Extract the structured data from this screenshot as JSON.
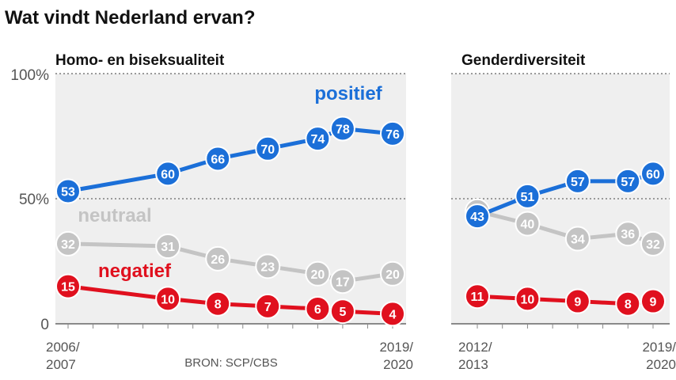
{
  "title": "Wat vindt Nederland ervan?",
  "source": "BRON: SCP/CBS",
  "y_ticks": [
    "100%",
    "50%",
    "0"
  ],
  "colors": {
    "positief": "#1b6fd8",
    "neutraal": "#c4c4c4",
    "negatief": "#e0101e",
    "panel_bg": "#efefef",
    "grid": "#9a9a9a"
  },
  "chart_data": [
    {
      "type": "line",
      "title": "Homo- en biseksualiteit",
      "x": [
        0,
        1,
        2,
        3,
        4,
        5,
        6,
        7,
        8,
        9,
        10,
        11,
        12,
        13
      ],
      "x_tick_labels": {
        "start": "2006/\n2007",
        "end": "2019/\n2020"
      },
      "ylim": [
        0,
        100
      ],
      "series": [
        {
          "name": "positief",
          "points": [
            [
              0,
              53
            ],
            [
              4,
              60
            ],
            [
              6,
              66
            ],
            [
              8,
              70
            ],
            [
              10,
              74
            ],
            [
              11,
              78
            ],
            [
              13,
              76
            ]
          ]
        },
        {
          "name": "neutraal",
          "points": [
            [
              0,
              32
            ],
            [
              4,
              31
            ],
            [
              6,
              26
            ],
            [
              8,
              23
            ],
            [
              10,
              20
            ],
            [
              11,
              17
            ],
            [
              13,
              20
            ]
          ]
        },
        {
          "name": "negatief",
          "points": [
            [
              0,
              15
            ],
            [
              4,
              10
            ],
            [
              6,
              8
            ],
            [
              8,
              7
            ],
            [
              10,
              6
            ],
            [
              11,
              5
            ],
            [
              13,
              4
            ]
          ]
        }
      ]
    },
    {
      "type": "line",
      "title": "Genderdiversiteit",
      "x": [
        0,
        1,
        2,
        3,
        4,
        5,
        6,
        7
      ],
      "x_tick_labels": {
        "start": "2012/\n2013",
        "end": "2019/\n2020"
      },
      "ylim": [
        0,
        100
      ],
      "series": [
        {
          "name": "positief",
          "points": [
            [
              0,
              43
            ],
            [
              2,
              51
            ],
            [
              4,
              57
            ],
            [
              6,
              57
            ],
            [
              7,
              60
            ]
          ]
        },
        {
          "name": "neutraal",
          "points": [
            [
              0,
              45
            ],
            [
              2,
              40
            ],
            [
              4,
              34
            ],
            [
              6,
              36
            ],
            [
              7,
              32
            ]
          ]
        },
        {
          "name": "negatief",
          "points": [
            [
              0,
              11
            ],
            [
              2,
              10
            ],
            [
              4,
              9
            ],
            [
              6,
              8
            ],
            [
              7,
              9
            ]
          ]
        }
      ]
    }
  ]
}
